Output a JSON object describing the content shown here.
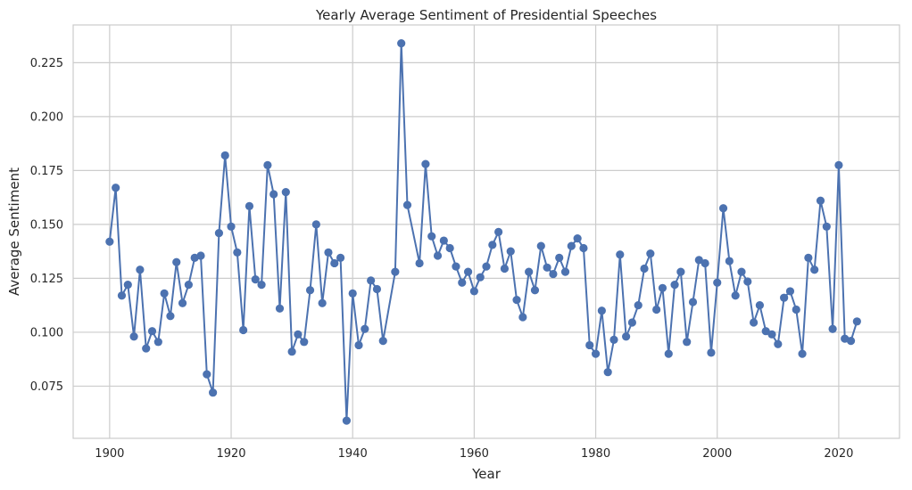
{
  "chart_data": {
    "type": "line",
    "title": "Yearly Average Sentiment of Presidential Speeches",
    "xlabel": "Year",
    "ylabel": "Average Sentiment",
    "xlim": [
      1894,
      2030
    ],
    "ylim": [
      0.0508,
      0.2425
    ],
    "xticks": [
      1900,
      1920,
      1940,
      1960,
      1980,
      2000,
      2020
    ],
    "yticks": [
      "0.075",
      "0.100",
      "0.125",
      "0.150",
      "0.175",
      "0.200",
      "0.225"
    ],
    "grid": true,
    "markers": true,
    "line_color": "#4c72b0",
    "series": [
      {
        "x": [
          1900,
          1901,
          1902,
          1903,
          1904,
          1905,
          1906,
          1907,
          1908,
          1909,
          1910,
          1911,
          1912,
          1913,
          1914,
          1915,
          1916,
          1917,
          1918,
          1919,
          1920,
          1921,
          1922,
          1923,
          1924,
          1925,
          1926,
          1927,
          1928,
          1929,
          1930,
          1931,
          1932,
          1933,
          1934,
          1935,
          1936,
          1937,
          1938,
          1939,
          1940,
          1941,
          1942,
          1943,
          1944,
          1945,
          1947,
          1948,
          1949,
          1951,
          1952,
          1953,
          1954,
          1955,
          1956,
          1957,
          1958,
          1959,
          1960,
          1961,
          1962,
          1963,
          1964,
          1965,
          1966,
          1967,
          1968,
          1969,
          1970,
          1971,
          1972,
          1973,
          1974,
          1975,
          1976,
          1977,
          1978,
          1979,
          1980,
          1981,
          1982,
          1983,
          1984,
          1985,
          1986,
          1987,
          1988,
          1989,
          1990,
          1991,
          1992,
          1993,
          1994,
          1995,
          1996,
          1997,
          1998,
          1999,
          2000,
          2001,
          2002,
          2003,
          2004,
          2005,
          2006,
          2007,
          2008,
          2009,
          2010,
          2011,
          2012,
          2013,
          2014,
          2015,
          2016,
          2017,
          2018,
          2019,
          2020,
          2021,
          2022,
          2023
        ],
        "values": [
          0.142,
          0.167,
          0.117,
          0.122,
          0.098,
          0.129,
          0.0925,
          0.1005,
          0.0955,
          0.118,
          0.1075,
          0.1325,
          0.1135,
          0.122,
          0.1345,
          0.1355,
          0.0805,
          0.072,
          0.146,
          0.182,
          0.149,
          0.137,
          0.101,
          0.1585,
          0.1245,
          0.122,
          0.1775,
          0.164,
          0.111,
          0.165,
          0.091,
          0.099,
          0.0955,
          0.1195,
          0.15,
          0.1135,
          0.137,
          0.132,
          0.1345,
          0.059,
          0.118,
          0.094,
          0.1015,
          0.124,
          0.12,
          0.096,
          0.128,
          0.234,
          0.159,
          0.132,
          0.178,
          0.1445,
          0.1355,
          0.1425,
          0.139,
          0.1305,
          0.123,
          0.128,
          0.119,
          0.1255,
          0.1305,
          0.1405,
          0.1465,
          0.1295,
          0.1375,
          0.115,
          0.107,
          0.128,
          0.1195,
          0.14,
          0.13,
          0.127,
          0.1345,
          0.128,
          0.14,
          0.1435,
          0.139,
          0.094,
          0.09,
          0.11,
          0.0815,
          0.0965,
          0.136,
          0.098,
          0.1045,
          0.1125,
          0.1295,
          0.1365,
          0.1105,
          0.1205,
          0.09,
          0.122,
          0.128,
          0.0955,
          0.114,
          0.1335,
          0.132,
          0.0905,
          0.123,
          0.1575,
          0.133,
          0.117,
          0.128,
          0.1235,
          0.1045,
          0.1125,
          0.1005,
          0.099,
          0.0945,
          0.116,
          0.119,
          0.1105,
          0.09,
          0.1345,
          0.129,
          0.161,
          0.149,
          0.1015,
          0.1775,
          0.097,
          0.096,
          0.105
        ]
      }
    ]
  }
}
